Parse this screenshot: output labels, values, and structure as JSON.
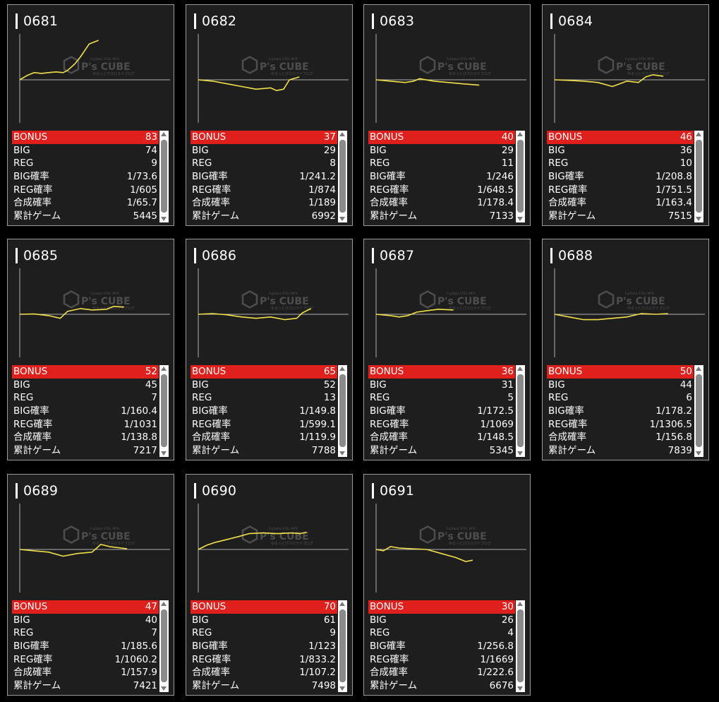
{
  "labels": [
    "BONUS",
    "BIG",
    "REG",
    "BIG確率",
    "REG確率",
    "合成確率",
    "累計ゲーム"
  ],
  "watermark": {
    "brand": "P's CUBE",
    "top": "Fujitaka STEL MFR",
    "sub": "ゆるっとぴスロライブログ"
  },
  "colors": {
    "bonus_row": "#e0201c",
    "graph_line": "#f1e04a",
    "card_bg": "#1e1e1e"
  },
  "machines": [
    {
      "id": "0681",
      "bonus": "83",
      "big": "74",
      "reg": "9",
      "big_rate": "1/73.6",
      "reg_rate": "1/605",
      "total_rate": "1/65.7",
      "games": "5445"
    },
    {
      "id": "0682",
      "bonus": "37",
      "big": "29",
      "reg": "8",
      "big_rate": "1/241.2",
      "reg_rate": "1/874",
      "total_rate": "1/189",
      "games": "6992"
    },
    {
      "id": "0683",
      "bonus": "40",
      "big": "29",
      "reg": "11",
      "big_rate": "1/246",
      "reg_rate": "1/648.5",
      "total_rate": "1/178.4",
      "games": "7133"
    },
    {
      "id": "0684",
      "bonus": "46",
      "big": "36",
      "reg": "10",
      "big_rate": "1/208.8",
      "reg_rate": "1/751.5",
      "total_rate": "1/163.4",
      "games": "7515"
    },
    {
      "id": "0685",
      "bonus": "52",
      "big": "45",
      "reg": "7",
      "big_rate": "1/160.4",
      "reg_rate": "1/1031",
      "total_rate": "1/138.8",
      "games": "7217"
    },
    {
      "id": "0686",
      "bonus": "65",
      "big": "52",
      "reg": "13",
      "big_rate": "1/149.8",
      "reg_rate": "1/599.1",
      "total_rate": "1/119.9",
      "games": "7788"
    },
    {
      "id": "0687",
      "bonus": "36",
      "big": "31",
      "reg": "5",
      "big_rate": "1/172.5",
      "reg_rate": "1/1069",
      "total_rate": "1/148.5",
      "games": "5345"
    },
    {
      "id": "0688",
      "bonus": "50",
      "big": "44",
      "reg": "6",
      "big_rate": "1/178.2",
      "reg_rate": "1/1306.5",
      "total_rate": "1/156.8",
      "games": "7839"
    },
    {
      "id": "0689",
      "bonus": "47",
      "big": "40",
      "reg": "7",
      "big_rate": "1/185.6",
      "reg_rate": "1/1060.2",
      "total_rate": "1/157.9",
      "games": "7421"
    },
    {
      "id": "0690",
      "bonus": "70",
      "big": "61",
      "reg": "9",
      "big_rate": "1/123",
      "reg_rate": "1/833.2",
      "total_rate": "1/107.2",
      "games": "7498"
    },
    {
      "id": "0691",
      "bonus": "30",
      "big": "26",
      "reg": "4",
      "big_rate": "1/256.8",
      "reg_rate": "1/1669",
      "total_rate": "1/222.6",
      "games": "6676"
    }
  ],
  "chart_data": [
    {
      "type": "line",
      "machine": "0681",
      "x_max": 5445,
      "y_range": [
        -1500,
        3000
      ],
      "series": [
        {
          "values": [
            [
              0,
              0
            ],
            [
              500,
              300
            ],
            [
              1000,
              500
            ],
            [
              1500,
              450
            ],
            [
              2000,
              500
            ],
            [
              2500,
              550
            ],
            [
              3000,
              500
            ],
            [
              3300,
              650
            ],
            [
              3800,
              1100
            ],
            [
              4200,
              1600
            ],
            [
              4800,
              2500
            ],
            [
              5445,
              2750
            ]
          ]
        }
      ]
    },
    {
      "type": "line",
      "machine": "0682",
      "x_max": 6992,
      "y_range": [
        -1500,
        3000
      ],
      "series": [
        {
          "values": [
            [
              0,
              0
            ],
            [
              1000,
              -50
            ],
            [
              2000,
              -150
            ],
            [
              3000,
              -250
            ],
            [
              4000,
              -350
            ],
            [
              5000,
              -300
            ],
            [
              5400,
              -400
            ],
            [
              5900,
              -350
            ],
            [
              6300,
              0
            ],
            [
              6992,
              200
            ]
          ]
        }
      ]
    },
    {
      "type": "line",
      "machine": "0683",
      "x_max": 7133,
      "y_range": [
        -1500,
        3000
      ],
      "series": [
        {
          "values": [
            [
              0,
              0
            ],
            [
              1000,
              -50
            ],
            [
              2000,
              -100
            ],
            [
              2600,
              -50
            ],
            [
              3000,
              80
            ],
            [
              4000,
              -50
            ],
            [
              5000,
              -100
            ],
            [
              6000,
              -150
            ],
            [
              7133,
              -200
            ]
          ]
        }
      ]
    },
    {
      "type": "line",
      "machine": "0684",
      "x_max": 7515,
      "y_range": [
        -1500,
        3000
      ],
      "series": [
        {
          "values": [
            [
              0,
              0
            ],
            [
              1000,
              -20
            ],
            [
              2000,
              -50
            ],
            [
              3000,
              -100
            ],
            [
              4000,
              -250
            ],
            [
              5000,
              -50
            ],
            [
              5800,
              -100
            ],
            [
              6300,
              200
            ],
            [
              6800,
              350
            ],
            [
              7515,
              250
            ]
          ]
        }
      ]
    },
    {
      "type": "line",
      "machine": "0685",
      "x_max": 7217,
      "y_range": [
        -1500,
        3000
      ],
      "series": [
        {
          "values": [
            [
              0,
              0
            ],
            [
              1000,
              20
            ],
            [
              2000,
              -50
            ],
            [
              2800,
              -150
            ],
            [
              3300,
              200
            ],
            [
              4200,
              400
            ],
            [
              5000,
              300
            ],
            [
              6000,
              350
            ],
            [
              6500,
              550
            ],
            [
              7217,
              500
            ]
          ]
        }
      ]
    },
    {
      "type": "line",
      "machine": "0686",
      "x_max": 7788,
      "y_range": [
        -1500,
        3000
      ],
      "series": [
        {
          "values": [
            [
              0,
              0
            ],
            [
              1000,
              50
            ],
            [
              2000,
              -20
            ],
            [
              3000,
              -100
            ],
            [
              4000,
              -150
            ],
            [
              5000,
              -100
            ],
            [
              6000,
              -200
            ],
            [
              6800,
              -150
            ],
            [
              7200,
              100
            ],
            [
              7788,
              400
            ]
          ]
        }
      ]
    },
    {
      "type": "line",
      "machine": "0687",
      "x_max": 5345,
      "y_range": [
        -1500,
        3000
      ],
      "series": [
        {
          "values": [
            [
              0,
              0
            ],
            [
              1000,
              -50
            ],
            [
              1600,
              -100
            ],
            [
              2200,
              -50
            ],
            [
              2800,
              150
            ],
            [
              3500,
              250
            ],
            [
              4300,
              350
            ],
            [
              5345,
              300
            ]
          ]
        }
      ]
    },
    {
      "type": "line",
      "machine": "0688",
      "x_max": 7839,
      "y_range": [
        -1500,
        3000
      ],
      "series": [
        {
          "values": [
            [
              0,
              0
            ],
            [
              1000,
              -100
            ],
            [
              2000,
              -200
            ],
            [
              3000,
              -200
            ],
            [
              4000,
              -150
            ],
            [
              5000,
              -100
            ],
            [
              6000,
              50
            ],
            [
              7000,
              0
            ],
            [
              7839,
              50
            ]
          ]
        }
      ]
    },
    {
      "type": "line",
      "machine": "0689",
      "x_max": 7421,
      "y_range": [
        -1500,
        3000
      ],
      "series": [
        {
          "values": [
            [
              0,
              0
            ],
            [
              1000,
              -50
            ],
            [
              2000,
              -100
            ],
            [
              3000,
              -250
            ],
            [
              4000,
              -150
            ],
            [
              5000,
              -100
            ],
            [
              5600,
              350
            ],
            [
              6200,
              200
            ],
            [
              7000,
              100
            ],
            [
              7421,
              50
            ]
          ]
        }
      ]
    },
    {
      "type": "line",
      "machine": "0690",
      "x_max": 7498,
      "y_range": [
        -1500,
        3000
      ],
      "series": [
        {
          "values": [
            [
              0,
              0
            ],
            [
              600,
              300
            ],
            [
              1200,
              500
            ],
            [
              2000,
              700
            ],
            [
              2800,
              900
            ],
            [
              3500,
              1100
            ],
            [
              4500,
              1150
            ],
            [
              5500,
              1100
            ],
            [
              6500,
              1150
            ],
            [
              7000,
              1100
            ],
            [
              7498,
              1200
            ]
          ]
        }
      ]
    },
    {
      "type": "line",
      "machine": "0691",
      "x_max": 6676,
      "y_range": [
        -1500,
        3000
      ],
      "series": [
        {
          "values": [
            [
              0,
              0
            ],
            [
              500,
              -50
            ],
            [
              1000,
              200
            ],
            [
              1600,
              100
            ],
            [
              2500,
              50
            ],
            [
              3500,
              0
            ],
            [
              4500,
              -150
            ],
            [
              5500,
              -300
            ],
            [
              6200,
              -450
            ],
            [
              6676,
              -400
            ]
          ]
        }
      ]
    }
  ]
}
